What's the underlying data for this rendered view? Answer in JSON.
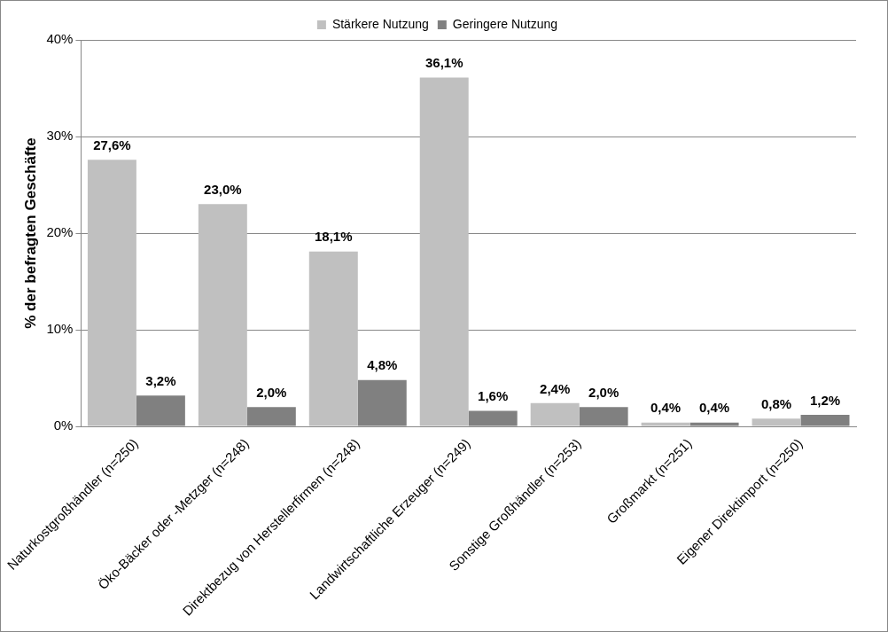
{
  "chart_data": {
    "type": "bar",
    "ylabel": "% der befragten Geschäfte",
    "categories": [
      "Naturkostgroßhändler (n=250)",
      "Öko-Bäcker oder -Metzger (n=248)",
      "Direktbezug von Herstellerfirmen (n=248)",
      "Landwirtschaftliche Erzeuger (n=249)",
      "Sonstige Großhändler (n=253)",
      "Großmarkt (n=251)",
      "Eigener Direktimport (n=250)"
    ],
    "series": [
      {
        "name": "Stärkere Nutzung",
        "color": "#c0c0c0",
        "values": [
          27.6,
          23.0,
          18.1,
          36.1,
          2.4,
          0.4,
          0.8
        ],
        "value_labels": [
          "27,6%",
          "23,0%",
          "18,1%",
          "36,1%",
          "2,4%",
          "0,4%",
          "0,8%"
        ]
      },
      {
        "name": "Geringere Nutzung",
        "color": "#808080",
        "values": [
          3.2,
          2.0,
          4.8,
          1.6,
          2.0,
          0.4,
          1.2
        ],
        "value_labels": [
          "3,2%",
          "2,0%",
          "4,8%",
          "1,6%",
          "2,0%",
          "0,4%",
          "1,2%"
        ]
      }
    ],
    "ylim": [
      0,
      40
    ],
    "yticks": [
      {
        "value": 0,
        "label": "0%"
      },
      {
        "value": 10,
        "label": "10%"
      },
      {
        "value": 20,
        "label": "20%"
      },
      {
        "value": 30,
        "label": "30%"
      },
      {
        "value": 40,
        "label": "40%"
      }
    ],
    "grid": "y",
    "legend": "top"
  }
}
